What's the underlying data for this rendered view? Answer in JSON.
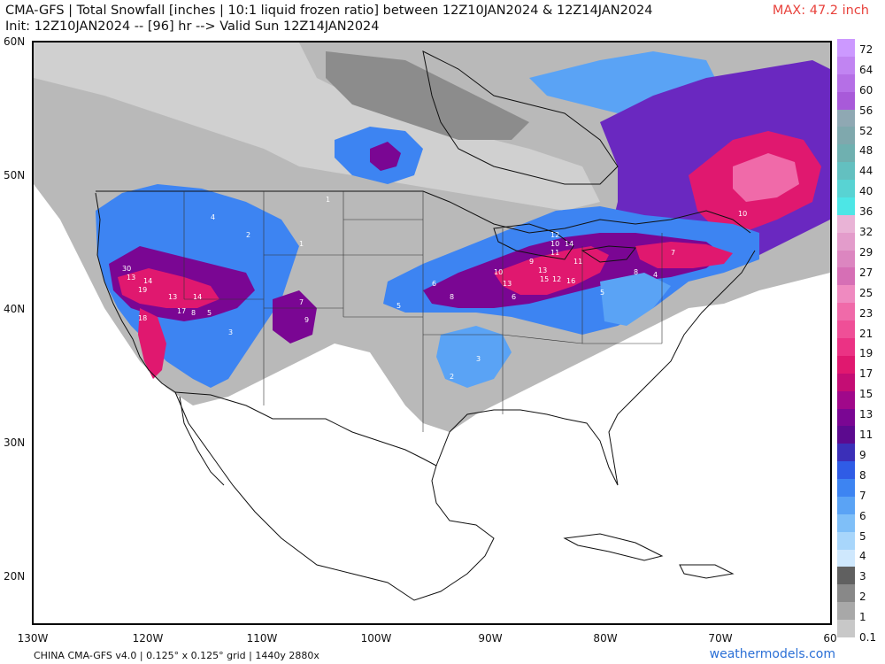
{
  "header": {
    "line1": "CMA-GFS | Total Snowfall [inches | 10:1 liquid frozen ratio] between 12Z10JAN2024 & 12Z14JAN2024",
    "line2": "Init: 12Z10JAN2024 -- [96] hr --> Valid Sun 12Z14JAN2024",
    "max_label": "MAX: 47.2 inch"
  },
  "footer": {
    "left": "CHINA CMA-GFS v4.0 | 0.125° x 0.125° grid | 1440y 2880x",
    "right": "weathermodels.com"
  },
  "axes": {
    "lat_labels": [
      "60N",
      "50N",
      "40N",
      "30N",
      "20N"
    ],
    "lon_labels": [
      "130W",
      "120W",
      "110W",
      "100W",
      "90W",
      "80W",
      "70W",
      "60"
    ]
  },
  "colorbar": {
    "labels": [
      "72",
      "64",
      "60",
      "56",
      "52",
      "48",
      "44",
      "40",
      "36",
      "32",
      "29",
      "27",
      "25",
      "23",
      "21",
      "19",
      "17",
      "15",
      "13",
      "11",
      "9",
      "8",
      "7",
      "6",
      "5",
      "4",
      "3",
      "2",
      "1",
      "0.1"
    ],
    "colors": [
      "#cc99ff",
      "#c184f2",
      "#b56fe6",
      "#a85ad9",
      "#8fa8b3",
      "#7fa8ad",
      "#6fb0b0",
      "#63c0c0",
      "#58d3d3",
      "#4de6e6",
      "#e9b3d6",
      "#e39ccb",
      "#dc86c0",
      "#d66fb5",
      "#ef8ac0",
      "#f06aa9",
      "#ef4f97",
      "#eb3284",
      "#e0186f",
      "#c40d74",
      "#a0088a",
      "#7a0693",
      "#5c0a8f",
      "#3b2fb8",
      "#2f5ce6",
      "#3d84f2",
      "#5aa3f5",
      "#7fbff8",
      "#a8d6fb",
      "#cfe8fd",
      "#606060",
      "#888888",
      "#a8a8a8",
      "#c8c8c8"
    ],
    "note": ""
  },
  "map_labels": [
    {
      "t": "30"
    },
    {
      "t": "13"
    },
    {
      "t": "14"
    },
    {
      "t": "19"
    },
    {
      "t": "18"
    },
    {
      "t": "17"
    },
    {
      "t": "14"
    },
    {
      "t": "13"
    },
    {
      "t": "8"
    },
    {
      "t": "5"
    },
    {
      "t": "7"
    },
    {
      "t": "9"
    },
    {
      "t": "12"
    },
    {
      "t": "10"
    },
    {
      "t": "14"
    },
    {
      "t": "11"
    },
    {
      "t": "13"
    },
    {
      "t": "16"
    },
    {
      "t": "15"
    },
    {
      "t": "12"
    },
    {
      "t": "10"
    },
    {
      "t": "8"
    },
    {
      "t": "6"
    },
    {
      "t": "5"
    },
    {
      "t": "4"
    },
    {
      "t": "3"
    },
    {
      "t": "2"
    },
    {
      "t": "1"
    },
    {
      "t": "7"
    },
    {
      "t": "10"
    },
    {
      "t": "8"
    },
    {
      "t": "5"
    },
    {
      "t": "6"
    },
    {
      "t": "4"
    },
    {
      "t": "3"
    },
    {
      "t": "2"
    },
    {
      "t": "1"
    },
    {
      "t": "9"
    },
    {
      "t": "13"
    },
    {
      "t": "11"
    }
  ]
}
